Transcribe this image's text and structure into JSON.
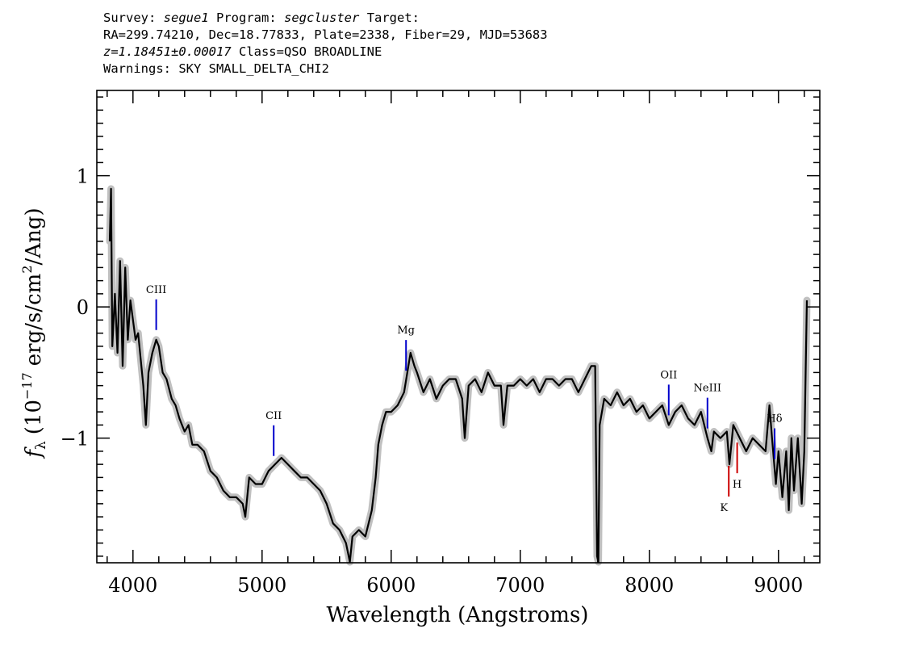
{
  "header": {
    "line1": {
      "survey_label": "Survey:",
      "survey": "segue1",
      "program_label": "Program:",
      "program": "segcluster",
      "target_label": "Target:"
    },
    "line2": "RA=299.74210, Dec=18.77833, Plate=2338, Fiber=29, MJD=53683",
    "line3": {
      "redshift": "z=1.18451±0.00017",
      "class": "Class=QSO BROADLINE"
    },
    "line4": "Warnings: SKY SMALL_DELTA_CHI2"
  },
  "chart_data": {
    "type": "line",
    "xlabel": "Wavelength (Angstroms)",
    "ylabel": "f_λ (10^-17 erg/s/cm^2/Ang)",
    "ylabel_parts": {
      "f": "f",
      "sub": "λ",
      "open": "(10",
      "exp": "−17",
      "mid": "erg/s/cm",
      "sq": "2",
      "close": "/Ang)"
    },
    "xlim": [
      3720,
      9320
    ],
    "ylim": [
      -1.95,
      1.65
    ],
    "xticks": [
      4000,
      5000,
      6000,
      7000,
      8000,
      9000
    ],
    "xtick_labels": [
      "4000",
      "5000",
      "6000",
      "7000",
      "8000",
      "9000"
    ],
    "yticks": [
      1,
      0,
      -1
    ],
    "ytick_labels": [
      "1",
      "0",
      "−1"
    ],
    "colors": {
      "spectrum": "#000000",
      "error": "#c0c0c0",
      "emission": "#0000cc",
      "absorption": "#cc0000"
    },
    "series": [
      {
        "style": "spectrum",
        "x": [
          3820,
          3830,
          3840,
          3860,
          3880,
          3900,
          3920,
          3940,
          3960,
          3980,
          4000,
          4020,
          4040,
          4060,
          4080,
          4100,
          4120,
          4150,
          4180,
          4200,
          4230,
          4260,
          4300,
          4330,
          4360,
          4400,
          4430,
          4460,
          4500,
          4550,
          4600,
          4650,
          4700,
          4750,
          4800,
          4850,
          4870,
          4900,
          4950,
          5000,
          5050,
          5100,
          5150,
          5200,
          5250,
          5300,
          5350,
          5400,
          5450,
          5500,
          5550,
          5600,
          5650,
          5680,
          5700,
          5750,
          5800,
          5850,
          5880,
          5900,
          5930,
          5960,
          6000,
          6050,
          6100,
          6150,
          6180,
          6200,
          6250,
          6300,
          6350,
          6400,
          6450,
          6500,
          6550,
          6570,
          6600,
          6650,
          6700,
          6750,
          6800,
          6850,
          6870,
          6900,
          6950,
          7000,
          7050,
          7100,
          7150,
          7200,
          7250,
          7300,
          7350,
          7400,
          7450,
          7500,
          7550,
          7580,
          7595,
          7605,
          7615,
          7650,
          7700,
          7750,
          7800,
          7850,
          7900,
          7950,
          8000,
          8050,
          8100,
          8150,
          8200,
          8250,
          8300,
          8350,
          8400,
          8450,
          8480,
          8500,
          8550,
          8600,
          8620,
          8650,
          8700,
          8750,
          8800,
          8850,
          8900,
          8930,
          8950,
          8980,
          9000,
          9030,
          9060,
          9080,
          9100,
          9120,
          9150,
          9180,
          9200,
          9220
        ],
        "y": [
          0.5,
          0.9,
          -0.3,
          0.1,
          -0.35,
          0.35,
          -0.45,
          0.3,
          -0.25,
          0.05,
          -0.1,
          -0.25,
          -0.2,
          -0.4,
          -0.6,
          -0.9,
          -0.5,
          -0.35,
          -0.25,
          -0.3,
          -0.5,
          -0.55,
          -0.7,
          -0.75,
          -0.85,
          -0.95,
          -0.9,
          -1.05,
          -1.05,
          -1.1,
          -1.25,
          -1.3,
          -1.4,
          -1.45,
          -1.45,
          -1.5,
          -1.6,
          -1.3,
          -1.35,
          -1.35,
          -1.25,
          -1.2,
          -1.15,
          -1.2,
          -1.25,
          -1.3,
          -1.3,
          -1.35,
          -1.4,
          -1.5,
          -1.65,
          -1.7,
          -1.8,
          -1.95,
          -1.75,
          -1.7,
          -1.75,
          -1.55,
          -1.3,
          -1.05,
          -0.9,
          -0.8,
          -0.8,
          -0.75,
          -0.65,
          -0.35,
          -0.45,
          -0.5,
          -0.65,
          -0.55,
          -0.7,
          -0.6,
          -0.55,
          -0.55,
          -0.7,
          -1.0,
          -0.6,
          -0.55,
          -0.65,
          -0.5,
          -0.6,
          -0.6,
          -0.9,
          -0.6,
          -0.6,
          -0.55,
          -0.6,
          -0.55,
          -0.65,
          -0.55,
          -0.55,
          -0.6,
          -0.55,
          -0.55,
          -0.65,
          -0.55,
          -0.45,
          -0.45,
          -1.9,
          -1.95,
          -0.9,
          -0.7,
          -0.75,
          -0.65,
          -0.75,
          -0.7,
          -0.8,
          -0.75,
          -0.85,
          -0.8,
          -0.75,
          -0.9,
          -0.8,
          -0.75,
          -0.85,
          -0.9,
          -0.8,
          -1.0,
          -1.1,
          -0.95,
          -1.0,
          -0.95,
          -1.2,
          -0.9,
          -1.0,
          -1.1,
          -1.0,
          -1.05,
          -1.1,
          -0.75,
          -1.0,
          -1.35,
          -1.1,
          -1.45,
          -1.1,
          -1.55,
          -1.0,
          -1.4,
          -1.0,
          -1.5,
          -1.1,
          0.05
        ]
      }
    ],
    "lines": [
      {
        "label": "CIII",
        "x": 4180,
        "kind": "emission"
      },
      {
        "label": "CII",
        "x": 5090,
        "kind": "emission"
      },
      {
        "label": "Mg",
        "x": 6115,
        "kind": "emission"
      },
      {
        "label": "OII",
        "x": 8150,
        "kind": "emission"
      },
      {
        "label": "NeIII",
        "x": 8450,
        "kind": "emission"
      },
      {
        "label": "Hδ",
        "x": 8970,
        "kind": "emission"
      },
      {
        "label": "K",
        "x": 8615,
        "kind": "absorption"
      },
      {
        "label": "H",
        "x": 8680,
        "kind": "absorption"
      }
    ],
    "grid": false
  }
}
